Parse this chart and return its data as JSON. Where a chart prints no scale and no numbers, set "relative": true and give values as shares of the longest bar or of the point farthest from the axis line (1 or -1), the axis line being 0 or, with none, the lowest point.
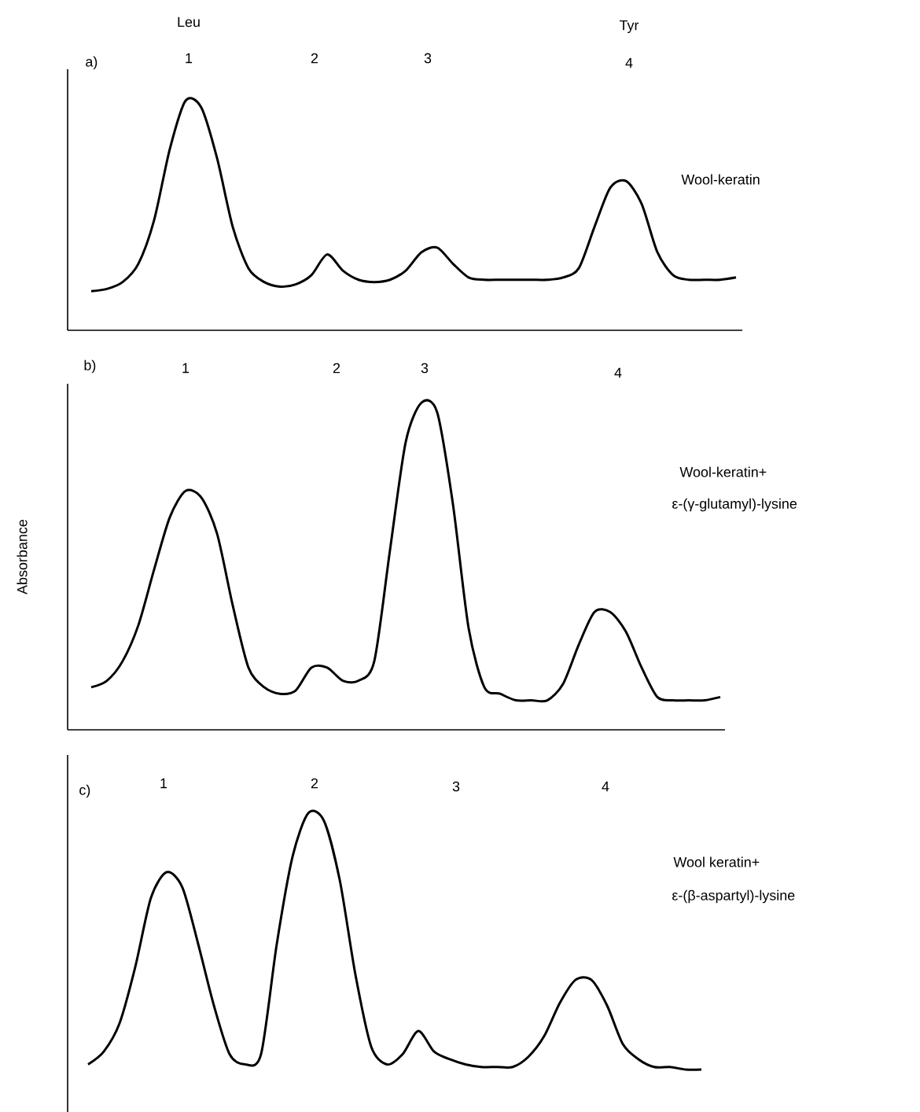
{
  "chart_data": [
    {
      "type": "line",
      "relative": true,
      "tick_labels": false,
      "color": "#000000",
      "categories": [
        null,
        null,
        null,
        null,
        null,
        null,
        null,
        null,
        null,
        null,
        null,
        null,
        null,
        null,
        null,
        null,
        null,
        null,
        null,
        null,
        null,
        null,
        null,
        null,
        null,
        null,
        null,
        null,
        null,
        null,
        null,
        null,
        null,
        null,
        null,
        null,
        null,
        null,
        null,
        null,
        null,
        null
      ],
      "values": [
        0.17,
        0.18,
        0.21,
        0.29,
        0.48,
        0.79,
        1.0,
        0.97,
        0.75,
        0.45,
        0.27,
        0.21,
        0.19,
        0.2,
        0.24,
        0.33,
        0.26,
        0.22,
        0.21,
        0.22,
        0.26,
        0.34,
        0.36,
        0.29,
        0.23,
        0.22,
        0.22,
        0.22,
        0.22,
        0.22,
        0.23,
        0.27,
        0.45,
        0.62,
        0.65,
        0.55,
        0.34,
        0.24,
        0.22,
        0.22,
        0.22,
        0.23
      ],
      "annotations": [
        "a)",
        "Leu",
        "1",
        "2",
        "3",
        "Tyr",
        "4",
        "Wool-keratin"
      ]
    },
    {
      "type": "line",
      "relative": true,
      "tick_labels": false,
      "color": "#000000",
      "ylabel": "Absorbance",
      "categories": [
        null,
        null,
        null,
        null,
        null,
        null,
        null,
        null,
        null,
        null,
        null,
        null,
        null,
        null,
        null,
        null,
        null,
        null,
        null,
        null,
        null,
        null,
        null,
        null,
        null,
        null,
        null,
        null,
        null,
        null,
        null,
        null,
        null,
        null,
        null,
        null,
        null,
        null,
        null,
        null,
        null
      ],
      "values": [
        0.13,
        0.15,
        0.21,
        0.32,
        0.49,
        0.65,
        0.73,
        0.71,
        0.6,
        0.38,
        0.19,
        0.13,
        0.11,
        0.12,
        0.19,
        0.19,
        0.15,
        0.15,
        0.21,
        0.55,
        0.88,
        1.0,
        0.97,
        0.69,
        0.31,
        0.13,
        0.11,
        0.09,
        0.09,
        0.09,
        0.14,
        0.26,
        0.36,
        0.36,
        0.3,
        0.19,
        0.1,
        0.09,
        0.09,
        0.09,
        0.1
      ],
      "annotations": [
        "b)",
        "1",
        "2",
        "3",
        "4",
        "Wool-keratin+",
        "ε-(γ-glutamyl)-lysine"
      ]
    },
    {
      "type": "line",
      "relative": true,
      "tick_labels": false,
      "color": "#000000",
      "categories": [
        null,
        null,
        null,
        null,
        null,
        null,
        null,
        null,
        null,
        null,
        null,
        null,
        null,
        null,
        null,
        null,
        null,
        null,
        null,
        null,
        null,
        null,
        null,
        null,
        null,
        null,
        null,
        null,
        null,
        null,
        null,
        null,
        null,
        null,
        null,
        null,
        null,
        null,
        null,
        null
      ],
      "values": [
        0.02,
        0.07,
        0.18,
        0.4,
        0.67,
        0.77,
        0.71,
        0.49,
        0.25,
        0.06,
        0.02,
        0.06,
        0.49,
        0.83,
        1.0,
        0.97,
        0.74,
        0.37,
        0.09,
        0.02,
        0.06,
        0.15,
        0.07,
        0.04,
        0.02,
        0.01,
        0.01,
        0.01,
        0.05,
        0.13,
        0.26,
        0.35,
        0.35,
        0.25,
        0.1,
        0.04,
        0.01,
        0.01,
        0,
        0
      ],
      "annotations": [
        "c)",
        "1",
        "2",
        "3",
        "4",
        "Wool keratin+",
        "ε-(β-aspartyl)-lysine"
      ]
    }
  ]
}
